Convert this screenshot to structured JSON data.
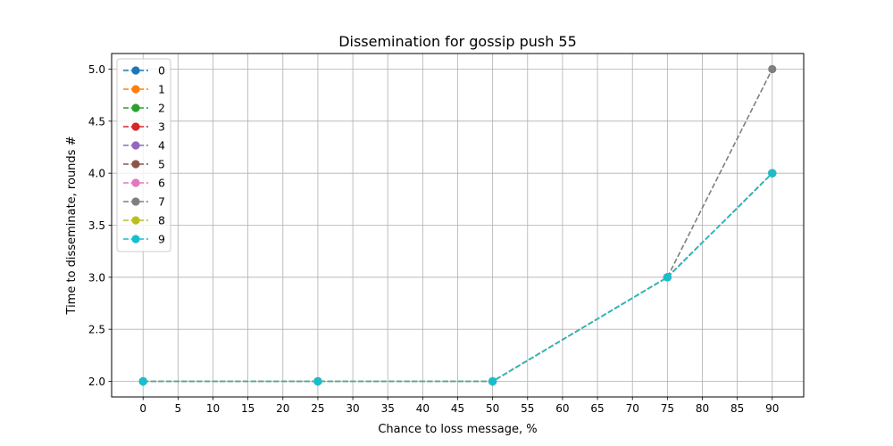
{
  "chart_data": {
    "type": "line",
    "title": "Dissemination for gossip push 55",
    "xlabel": "Chance to loss message, %",
    "ylabel": "Time to disseminate, rounds #",
    "x": [
      0,
      25,
      50,
      75,
      90
    ],
    "xticks": [
      "0",
      "5",
      "10",
      "15",
      "20",
      "25",
      "30",
      "35",
      "40",
      "45",
      "50",
      "55",
      "60",
      "65",
      "70",
      "75",
      "80",
      "85",
      "90"
    ],
    "yticks": [
      "2.0",
      "2.5",
      "3.0",
      "3.5",
      "4.0",
      "4.5",
      "5.0"
    ],
    "xlim": [
      -4.5,
      94.5
    ],
    "ylim": [
      1.85,
      5.15
    ],
    "grid": true,
    "legend_position": "upper-left",
    "series": [
      {
        "name": "0",
        "color": "#1f77b4",
        "values": [
          2,
          2,
          2,
          3,
          4
        ]
      },
      {
        "name": "1",
        "color": "#ff7f0e",
        "values": [
          2,
          2,
          2,
          3,
          4
        ]
      },
      {
        "name": "2",
        "color": "#2ca02c",
        "values": [
          2,
          2,
          2,
          3,
          4
        ]
      },
      {
        "name": "3",
        "color": "#d62728",
        "values": [
          2,
          2,
          2,
          3,
          4
        ]
      },
      {
        "name": "4",
        "color": "#9467bd",
        "values": [
          2,
          2,
          2,
          3,
          4
        ]
      },
      {
        "name": "5",
        "color": "#8c564b",
        "values": [
          2,
          2,
          2,
          3,
          4
        ]
      },
      {
        "name": "6",
        "color": "#e377c2",
        "values": [
          2,
          2,
          2,
          3,
          4
        ]
      },
      {
        "name": "7",
        "color": "#7f7f7f",
        "values": [
          2,
          2,
          2,
          3,
          5
        ]
      },
      {
        "name": "8",
        "color": "#bcbd22",
        "values": [
          2,
          2,
          2,
          3,
          4
        ]
      },
      {
        "name": "9",
        "color": "#17becf",
        "values": [
          2,
          2,
          2,
          3,
          4
        ]
      }
    ]
  }
}
